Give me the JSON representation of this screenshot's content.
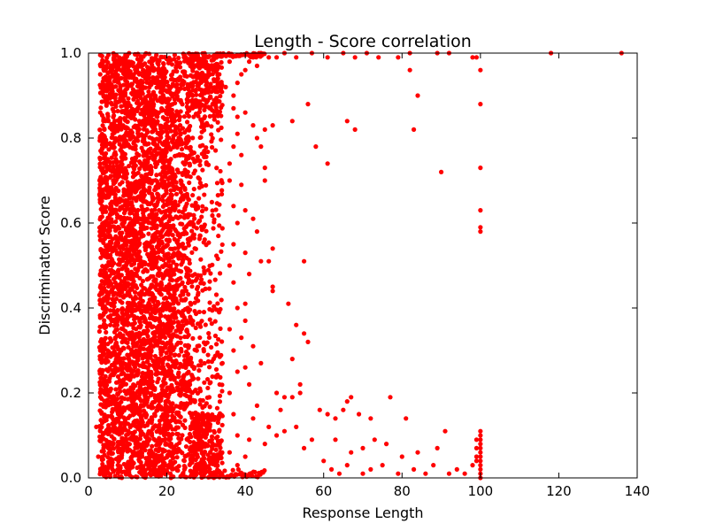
{
  "chart_data": {
    "type": "scatter",
    "title": "Length - Score correlation",
    "xlabel": "Response Length",
    "ylabel": "Discriminator Score",
    "xlim": [
      0,
      140
    ],
    "ylim": [
      0.0,
      1.0
    ],
    "xticks": [
      0,
      20,
      40,
      60,
      80,
      100,
      120,
      140
    ],
    "yticks": [
      0.0,
      0.2,
      0.4,
      0.6,
      0.8,
      1.0
    ],
    "xtick_labels": [
      "0",
      "20",
      "40",
      "60",
      "80",
      "100",
      "120",
      "140"
    ],
    "ytick_labels": [
      "0.0",
      "0.2",
      "0.4",
      "0.6",
      "0.8",
      "1.0"
    ],
    "grid": false,
    "marker_color": "#ff0000",
    "series": [
      {
        "points": [
          [
            2,
            0.12
          ],
          [
            3,
            0.11
          ],
          [
            2.5,
            0.05
          ],
          [
            3,
            0.48
          ],
          [
            3,
            0.56
          ],
          [
            3,
            0.69
          ],
          [
            3,
            0.75
          ],
          [
            3,
            0.86
          ],
          [
            3,
            0.95
          ],
          [
            3,
            0.3
          ],
          [
            3,
            0.2
          ],
          [
            52,
            0.84
          ],
          [
            56,
            0.88
          ],
          [
            58,
            0.78
          ],
          [
            61,
            0.74
          ],
          [
            66,
            0.84
          ],
          [
            68,
            0.82
          ],
          [
            82,
            0.96
          ],
          [
            83,
            0.82
          ],
          [
            84,
            0.9
          ],
          [
            90,
            0.72
          ],
          [
            100,
            0.96
          ],
          [
            100,
            0.88
          ],
          [
            100,
            0.73
          ],
          [
            100,
            0.63
          ],
          [
            100,
            0.59
          ],
          [
            100,
            0.58
          ],
          [
            118,
            1.0
          ],
          [
            136,
            1.0
          ],
          [
            45,
            0.73
          ],
          [
            45,
            0.7
          ],
          [
            47,
            0.54
          ],
          [
            47,
            0.45
          ],
          [
            47,
            0.44
          ],
          [
            55,
            0.51
          ],
          [
            46,
            0.51
          ],
          [
            43,
            0.8
          ],
          [
            42,
            0.83
          ],
          [
            44,
            0.78
          ],
          [
            45,
            0.82
          ],
          [
            47,
            0.83
          ],
          [
            51,
            0.41
          ],
          [
            53,
            0.36
          ],
          [
            55,
            0.34
          ],
          [
            56,
            0.32
          ],
          [
            52,
            0.28
          ],
          [
            54,
            0.22
          ],
          [
            54,
            0.2
          ],
          [
            48,
            0.2
          ],
          [
            50,
            0.19
          ],
          [
            52,
            0.19
          ],
          [
            49,
            0.16
          ],
          [
            44,
            0.27
          ],
          [
            42,
            0.31
          ],
          [
            40,
            0.37
          ],
          [
            42,
            0.61
          ],
          [
            43,
            0.58
          ],
          [
            40,
            0.53
          ],
          [
            44,
            0.51
          ],
          [
            59,
            0.16
          ],
          [
            61,
            0.15
          ],
          [
            63,
            0.14
          ],
          [
            65,
            0.16
          ],
          [
            66,
            0.18
          ],
          [
            67,
            0.19
          ],
          [
            69,
            0.15
          ],
          [
            72,
            0.14
          ],
          [
            77,
            0.19
          ],
          [
            81,
            0.14
          ],
          [
            91,
            0.11
          ],
          [
            84,
            0.06
          ],
          [
            89,
            0.07
          ],
          [
            80,
            0.05
          ],
          [
            73,
            0.09
          ],
          [
            76,
            0.08
          ],
          [
            70,
            0.07
          ],
          [
            67,
            0.06
          ],
          [
            63,
            0.09
          ],
          [
            60,
            0.04
          ],
          [
            57,
            0.09
          ],
          [
            55,
            0.07
          ],
          [
            53,
            0.12
          ],
          [
            50,
            0.11
          ],
          [
            48,
            0.1
          ],
          [
            46,
            0.12
          ],
          [
            45,
            0.08
          ],
          [
            62,
            0.02
          ],
          [
            64,
            0.01
          ],
          [
            66,
            0.03
          ],
          [
            70,
            0.01
          ],
          [
            72,
            0.02
          ],
          [
            75,
            0.03
          ],
          [
            79,
            0.01
          ],
          [
            83,
            0.02
          ],
          [
            86,
            0.01
          ],
          [
            88,
            0.03
          ],
          [
            92,
            0.01
          ],
          [
            94,
            0.02
          ],
          [
            96,
            0.01
          ],
          [
            98,
            0.03
          ],
          [
            99,
            0.05
          ],
          [
            100,
            0.0
          ],
          [
            100,
            0.01
          ],
          [
            100,
            0.02
          ],
          [
            100,
            0.03
          ],
          [
            100,
            0.04
          ],
          [
            100,
            0.05
          ],
          [
            100,
            0.06
          ],
          [
            100,
            0.07
          ],
          [
            100,
            0.08
          ],
          [
            100,
            0.09
          ],
          [
            100,
            0.1
          ],
          [
            100,
            0.11
          ],
          [
            99,
            0.09
          ],
          [
            99,
            0.07
          ],
          [
            99,
            0.04
          ],
          [
            99,
            0.99
          ],
          [
            98,
            0.99
          ],
          [
            92,
            1.0
          ],
          [
            89,
            1.0
          ],
          [
            82,
            1.0
          ],
          [
            79,
            0.99
          ],
          [
            74,
            0.99
          ],
          [
            71,
            1.0
          ],
          [
            68,
            0.99
          ],
          [
            65,
            1.0
          ],
          [
            61,
            0.99
          ],
          [
            57,
            1.0
          ],
          [
            53,
            0.99
          ],
          [
            50,
            1.0
          ],
          [
            48,
            0.99
          ],
          [
            46,
            0.99
          ],
          [
            44,
            1.0
          ],
          [
            42,
            0.99
          ],
          [
            41,
            0.98
          ],
          [
            43,
            0.97
          ],
          [
            40,
            0.96
          ],
          [
            39,
            0.95
          ],
          [
            38,
            0.93
          ],
          [
            37,
            0.9
          ],
          [
            37,
            0.87
          ],
          [
            38,
            0.85
          ],
          [
            38,
            0.81
          ],
          [
            37,
            0.78
          ],
          [
            36,
            0.74
          ],
          [
            36,
            0.7
          ],
          [
            37,
            0.64
          ],
          [
            38,
            0.6
          ],
          [
            37,
            0.55
          ],
          [
            36,
            0.5
          ],
          [
            37,
            0.46
          ],
          [
            38,
            0.4
          ],
          [
            36,
            0.35
          ],
          [
            37,
            0.3
          ],
          [
            38,
            0.25
          ],
          [
            36,
            0.2
          ],
          [
            37,
            0.15
          ],
          [
            38,
            0.1
          ],
          [
            36,
            0.06
          ],
          [
            38,
            0.03
          ],
          [
            40,
            0.05
          ],
          [
            41,
            0.09
          ],
          [
            42,
            0.14
          ],
          [
            43,
            0.17
          ],
          [
            41,
            0.22
          ],
          [
            40,
            0.26
          ],
          [
            39,
            0.33
          ],
          [
            40,
            0.41
          ],
          [
            41,
            0.48
          ],
          [
            40,
            0.63
          ],
          [
            39,
            0.69
          ],
          [
            39,
            0.76
          ],
          [
            40,
            0.86
          ],
          [
            36,
            0.98
          ],
          [
            35,
            0.92
          ]
        ],
        "dense_region": {
          "x_range": [
            3,
            34
          ],
          "y_range": [
            0.0,
            1.0
          ],
          "note": ""
        }
      }
    ]
  }
}
